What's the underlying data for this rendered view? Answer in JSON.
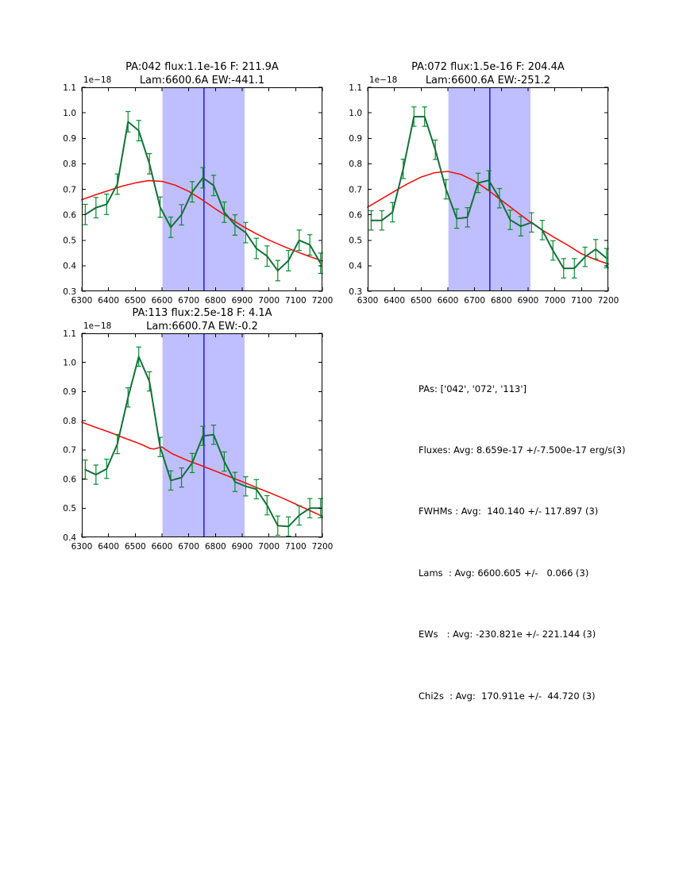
{
  "figure": {
    "background": "#ffffff",
    "frame_color": "#000000"
  },
  "stats_panel": {
    "lines": [
      "PAs: ['042', '072', '113']",
      "Fluxes: Avg: 8.659e-17 +/-7.500e-17 erg/s(3)",
      "FWHMs : Avg:  140.140 +/- 117.897 (3)",
      "Lams  : Avg: 6600.605 +/-   0.066 (3)",
      "EWs   : Avg: -230.821e +/- 221.144 (3)",
      "Chi2s  : Avg:  170.911e +/-  44.720 (3)"
    ]
  },
  "chart_data": [
    {
      "id": "pa042",
      "type": "line",
      "title_line1": "PA:042 flux:1.1e-16 F: 211.9A",
      "title_line2": "Lam:6600.6A EW:-441.1",
      "y_offset_label": "1e−18",
      "xlim": [
        6300,
        7200
      ],
      "ylim": [
        0.3,
        1.1
      ],
      "x_ticks": [
        6300,
        6400,
        6500,
        6600,
        6700,
        6800,
        6900,
        7000,
        7100,
        7200
      ],
      "y_ticks": [
        0.3,
        0.4,
        0.5,
        0.6,
        0.7,
        0.8,
        0.9,
        1.0,
        1.1
      ],
      "grid": false,
      "legend": null,
      "highlight_band": {
        "x0": 6602,
        "x1": 6909,
        "color": "#bfbfff"
      },
      "center_line": {
        "x": 6757,
        "color": "#0000dd"
      },
      "series": [
        {
          "name": "model",
          "color": "#ee1111",
          "width": 1.6,
          "x": [
            6300,
            6350,
            6400,
            6450,
            6500,
            6550,
            6600,
            6650,
            6700,
            6750,
            6800,
            6850,
            6900,
            6950,
            7000,
            7050,
            7100,
            7150,
            7200
          ],
          "y": [
            0.659,
            0.678,
            0.695,
            0.712,
            0.725,
            0.734,
            0.731,
            0.716,
            0.692,
            0.659,
            0.623,
            0.589,
            0.556,
            0.527,
            0.501,
            0.478,
            0.457,
            0.437,
            0.419
          ]
        },
        {
          "name": "spectrum",
          "color": "#156f3a",
          "err_color": "#0a8a32",
          "width": 2.0,
          "yerr": 0.04,
          "x": [
            6313,
            6353,
            6393,
            6433,
            6473,
            6513,
            6553,
            6593,
            6633,
            6673,
            6713,
            6753,
            6793,
            6833,
            6873,
            6913,
            6953,
            6993,
            7033,
            7073,
            7113,
            7153,
            7193
          ],
          "y": [
            0.601,
            0.628,
            0.641,
            0.72,
            0.965,
            0.93,
            0.8,
            0.63,
            0.551,
            0.6,
            0.69,
            0.745,
            0.715,
            0.61,
            0.56,
            0.53,
            0.468,
            0.438,
            0.381,
            0.42,
            0.5,
            0.482,
            0.41
          ]
        }
      ]
    },
    {
      "id": "pa072",
      "type": "line",
      "title_line1": "PA:072 flux:1.5e-16 F: 204.4A",
      "title_line2": "Lam:6600.6A EW:-251.2",
      "y_offset_label": "1e−18",
      "xlim": [
        6300,
        7200
      ],
      "ylim": [
        0.3,
        1.1
      ],
      "x_ticks": [
        6300,
        6400,
        6500,
        6600,
        6700,
        6800,
        6900,
        7000,
        7100,
        7200
      ],
      "y_ticks": [
        0.3,
        0.4,
        0.5,
        0.6,
        0.7,
        0.8,
        0.9,
        1.0,
        1.1
      ],
      "grid": false,
      "legend": null,
      "highlight_band": {
        "x0": 6602,
        "x1": 6909,
        "color": "#bfbfff"
      },
      "center_line": {
        "x": 6757,
        "color": "#0000dd"
      },
      "series": [
        {
          "name": "model",
          "color": "#ee1111",
          "width": 1.6,
          "x": [
            6300,
            6350,
            6400,
            6450,
            6500,
            6550,
            6600,
            6650,
            6700,
            6750,
            6800,
            6850,
            6900,
            6950,
            7000,
            7050,
            7100,
            7150,
            7200
          ],
          "y": [
            0.63,
            0.661,
            0.692,
            0.722,
            0.748,
            0.765,
            0.77,
            0.758,
            0.732,
            0.697,
            0.657,
            0.617,
            0.578,
            0.542,
            0.51,
            0.48,
            0.447,
            0.425,
            0.407
          ]
        },
        {
          "name": "spectrum",
          "color": "#156f3a",
          "err_color": "#0a8a32",
          "width": 2.0,
          "yerr": 0.038,
          "x": [
            6313,
            6353,
            6393,
            6433,
            6473,
            6513,
            6553,
            6593,
            6633,
            6673,
            6713,
            6753,
            6793,
            6833,
            6873,
            6913,
            6953,
            6993,
            7033,
            7073,
            7113,
            7153,
            7193
          ],
          "y": [
            0.578,
            0.578,
            0.61,
            0.78,
            0.985,
            0.985,
            0.855,
            0.7,
            0.585,
            0.59,
            0.725,
            0.735,
            0.665,
            0.58,
            0.555,
            0.57,
            0.54,
            0.46,
            0.39,
            0.39,
            0.435,
            0.465,
            0.43
          ]
        }
      ]
    },
    {
      "id": "pa113",
      "type": "line",
      "title_line1": "PA:113 flux:2.5e-18 F: 4.1A",
      "title_line2": "Lam:6600.7A EW:-0.2",
      "y_offset_label": "1e−18",
      "xlim": [
        6300,
        7200
      ],
      "ylim": [
        0.4,
        1.1
      ],
      "x_ticks": [
        6300,
        6400,
        6500,
        6600,
        6700,
        6800,
        6900,
        7000,
        7100,
        7200
      ],
      "y_ticks": [
        0.4,
        0.5,
        0.6,
        0.7,
        0.8,
        0.9,
        1.0,
        1.1
      ],
      "grid": false,
      "legend": null,
      "highlight_band": {
        "x0": 6602,
        "x1": 6909,
        "color": "#bfbfff"
      },
      "center_line": {
        "x": 6757,
        "color": "#0000dd"
      },
      "series": [
        {
          "name": "model",
          "color": "#ee1111",
          "width": 1.6,
          "x": [
            6300,
            6350,
            6400,
            6450,
            6500,
            6530,
            6555,
            6570,
            6600,
            6615,
            6640,
            6700,
            6750,
            6800,
            6850,
            6900,
            6950,
            7000,
            7050,
            7100,
            7150,
            7200
          ],
          "y": [
            0.795,
            0.778,
            0.762,
            0.744,
            0.727,
            0.716,
            0.705,
            0.703,
            0.71,
            0.7,
            0.686,
            0.662,
            0.645,
            0.627,
            0.609,
            0.591,
            0.572,
            0.554,
            0.535,
            0.514,
            0.493,
            0.472
          ]
        },
        {
          "name": "spectrum",
          "color": "#156f3a",
          "err_color": "#0a8a32",
          "width": 2.0,
          "yerr": 0.033,
          "x": [
            6313,
            6353,
            6393,
            6433,
            6473,
            6513,
            6553,
            6593,
            6633,
            6673,
            6713,
            6753,
            6793,
            6833,
            6873,
            6913,
            6953,
            6993,
            7033,
            7073,
            7113,
            7153,
            7193
          ],
          "y": [
            0.632,
            0.615,
            0.635,
            0.72,
            0.88,
            1.02,
            0.935,
            0.71,
            0.595,
            0.605,
            0.655,
            0.748,
            0.752,
            0.66,
            0.59,
            0.575,
            0.565,
            0.51,
            0.44,
            0.437,
            0.475,
            0.5,
            0.5
          ]
        }
      ]
    }
  ]
}
